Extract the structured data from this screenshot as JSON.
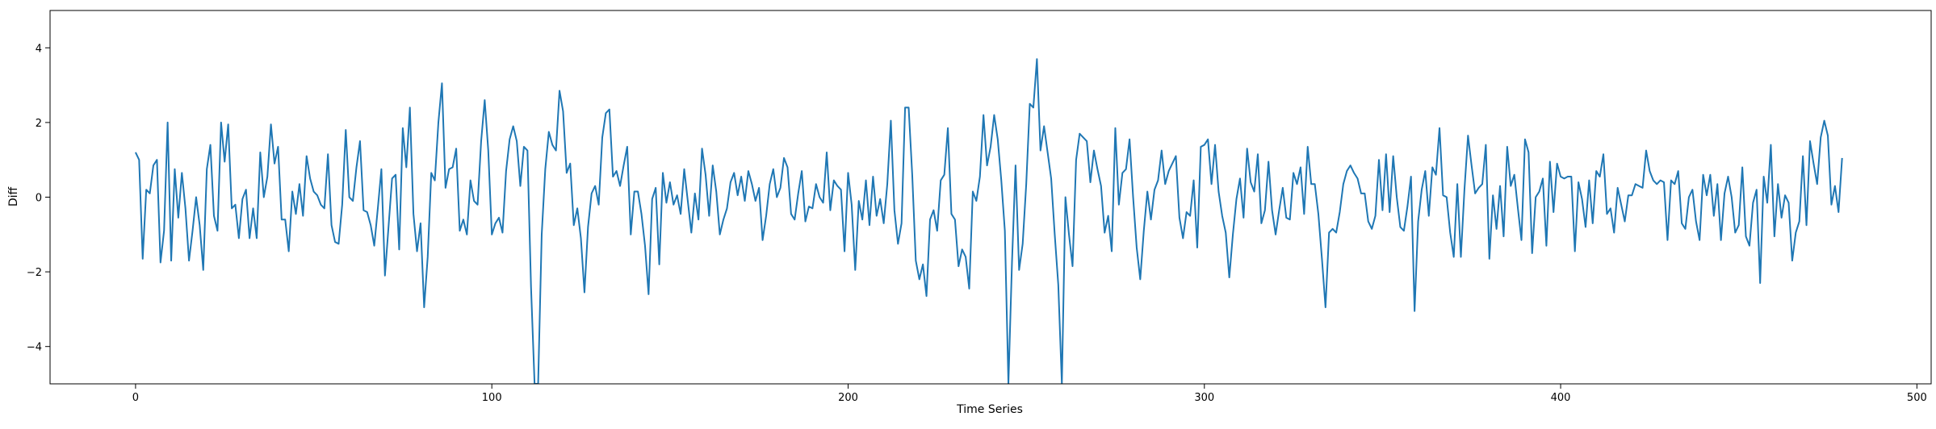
{
  "chart_data": {
    "type": "line",
    "title": "",
    "xlabel": "Time Series",
    "ylabel": "Diff",
    "xlim": [
      -24,
      504
    ],
    "ylim": [
      -5,
      5
    ],
    "xticks": [
      0,
      100,
      200,
      300,
      400,
      500
    ],
    "yticks": [
      -4,
      -2,
      0,
      2,
      4
    ],
    "grid": false,
    "legend": "none",
    "series": [
      {
        "color": "#1f77b4",
        "x_start": 0,
        "x_step": 1,
        "values": [
          1.2,
          1.0,
          -1.65,
          0.2,
          0.1,
          0.85,
          1.0,
          -1.75,
          -0.9,
          2.0,
          -1.7,
          0.75,
          -0.55,
          0.65,
          -0.3,
          -1.7,
          -0.9,
          0.0,
          -0.75,
          -1.95,
          0.75,
          1.4,
          -0.5,
          -0.9,
          2.0,
          0.95,
          1.95,
          -0.3,
          -0.2,
          -1.1,
          -0.05,
          0.2,
          -1.1,
          -0.3,
          -1.1,
          1.2,
          0.0,
          0.55,
          1.95,
          0.9,
          1.35,
          -0.6,
          -0.6,
          -1.45,
          0.15,
          -0.45,
          0.35,
          -0.5,
          1.1,
          0.5,
          0.15,
          0.05,
          -0.2,
          -0.3,
          1.15,
          -0.75,
          -1.2,
          -1.25,
          -0.2,
          1.8,
          0.0,
          -0.1,
          0.8,
          1.5,
          -0.35,
          -0.4,
          -0.75,
          -1.3,
          -0.3,
          0.75,
          -2.1,
          -0.8,
          0.5,
          0.6,
          -1.4,
          1.85,
          0.8,
          2.4,
          -0.45,
          -1.45,
          -0.7,
          -2.95,
          -1.6,
          0.65,
          0.45,
          2.0,
          3.05,
          0.25,
          0.75,
          0.8,
          1.3,
          -0.9,
          -0.6,
          -1.0,
          0.45,
          -0.1,
          -0.2,
          1.5,
          2.6,
          1.25,
          -1.0,
          -0.7,
          -0.55,
          -0.95,
          0.7,
          1.55,
          1.9,
          1.5,
          0.3,
          1.35,
          1.25,
          -2.4,
          -5.0,
          -5.0,
          -1.0,
          0.75,
          1.75,
          1.4,
          1.25,
          2.85,
          2.3,
          0.65,
          0.9,
          -0.75,
          -0.3,
          -1.1,
          -2.55,
          -0.8,
          0.1,
          0.3,
          -0.2,
          1.6,
          2.25,
          2.35,
          0.55,
          0.7,
          0.3,
          0.85,
          1.35,
          -1.0,
          0.15,
          0.15,
          -0.45,
          -1.3,
          -2.6,
          -0.05,
          0.25,
          -1.8,
          0.65,
          -0.15,
          0.4,
          -0.2,
          0.05,
          -0.45,
          0.75,
          -0.1,
          -0.95,
          0.1,
          -0.6,
          1.3,
          0.6,
          -0.5,
          0.85,
          0.15,
          -1.0,
          -0.6,
          -0.3,
          0.4,
          0.65,
          0.05,
          0.55,
          -0.1,
          0.7,
          0.35,
          -0.1,
          0.25,
          -1.15,
          -0.5,
          0.35,
          0.75,
          0.0,
          0.25,
          1.05,
          0.8,
          -0.45,
          -0.6,
          0.1,
          0.7,
          -0.65,
          -0.25,
          -0.3,
          0.35,
          0.0,
          -0.15,
          1.2,
          -0.35,
          0.45,
          0.3,
          0.2,
          -1.45,
          0.65,
          -0.2,
          -1.95,
          -0.1,
          -0.6,
          0.45,
          -0.75,
          0.55,
          -0.5,
          -0.05,
          -0.7,
          0.35,
          2.05,
          -0.35,
          -1.25,
          -0.7,
          2.4,
          2.4,
          0.6,
          -1.7,
          -2.2,
          -1.8,
          -2.65,
          -0.6,
          -0.35,
          -0.9,
          0.45,
          0.6,
          1.85,
          -0.45,
          -0.6,
          -1.85,
          -1.4,
          -1.6,
          -2.45,
          0.15,
          -0.1,
          0.55,
          2.2,
          0.85,
          1.35,
          2.2,
          1.55,
          0.45,
          -0.9,
          -5.0,
          -1.75,
          0.85,
          -1.95,
          -1.25,
          0.35,
          2.5,
          2.4,
          3.7,
          1.25,
          1.9,
          1.2,
          0.5,
          -1.0,
          -2.35,
          -5.0,
          0.0,
          -1.0,
          -1.85,
          1.0,
          1.7,
          1.6,
          1.5,
          0.4,
          1.25,
          0.75,
          0.3,
          -0.95,
          -0.5,
          -1.45,
          1.85,
          -0.2,
          0.65,
          0.75,
          1.55,
          0.0,
          -1.35,
          -2.2,
          -0.9,
          0.15,
          -0.6,
          0.2,
          0.45,
          1.25,
          0.35,
          0.7,
          0.9,
          1.1,
          -0.55,
          -1.1,
          -0.4,
          -0.5,
          0.45,
          -1.35,
          1.35,
          1.4,
          1.55,
          0.35,
          1.4,
          0.15,
          -0.5,
          -0.95,
          -2.15,
          -1.0,
          -0.05,
          0.5,
          -0.55,
          1.3,
          0.4,
          0.15,
          1.15,
          -0.7,
          -0.35,
          0.95,
          -0.35,
          -1.0,
          -0.35,
          0.25,
          -0.55,
          -0.6,
          0.65,
          0.35,
          0.8,
          -0.45,
          1.35,
          0.35,
          0.35,
          -0.45,
          -1.65,
          -2.95,
          -0.95,
          -0.85,
          -0.95,
          -0.4,
          0.35,
          0.7,
          0.85,
          0.65,
          0.5,
          0.1,
          0.1,
          -0.65,
          -0.85,
          -0.5,
          1.0,
          -0.35,
          1.15,
          -0.4,
          1.1,
          0.0,
          -0.8,
          -0.9,
          -0.25,
          0.55,
          -3.05,
          -0.65,
          0.2,
          0.7,
          -0.5,
          0.8,
          0.6,
          1.85,
          0.05,
          0.0,
          -0.95,
          -1.6,
          0.35,
          -1.6,
          0.2,
          1.65,
          0.85,
          0.1,
          0.25,
          0.35,
          1.4,
          -1.65,
          0.05,
          -0.85,
          0.3,
          -1.05,
          1.35,
          0.3,
          0.6,
          -0.3,
          -1.15,
          1.55,
          1.2,
          -1.5,
          0.0,
          0.15,
          0.5,
          -1.3,
          0.95,
          -0.4,
          0.9,
          0.55,
          0.5,
          0.55,
          0.55,
          -1.45,
          0.4,
          -0.05,
          -0.8,
          0.45,
          -0.7,
          0.7,
          0.55,
          1.15,
          -0.45,
          -0.3,
          -0.95,
          0.25,
          -0.2,
          -0.65,
          0.05,
          0.05,
          0.35,
          0.3,
          0.25,
          1.25,
          0.7,
          0.45,
          0.35,
          0.45,
          0.4,
          -1.15,
          0.45,
          0.35,
          0.7,
          -0.7,
          -0.85,
          0.0,
          0.2,
          -0.65,
          -1.15,
          0.6,
          0.05,
          0.6,
          -0.5,
          0.35,
          -1.15,
          0.1,
          0.55,
          0.0,
          -0.95,
          -0.75,
          0.8,
          -1.05,
          -1.3,
          -0.15,
          0.2,
          -2.3,
          0.55,
          -0.15,
          1.4,
          -1.05,
          0.35,
          -0.55,
          0.05,
          -0.15,
          -1.7,
          -0.95,
          -0.65,
          1.1,
          -0.75,
          1.5,
          0.9,
          0.35,
          1.6,
          2.05,
          1.65,
          -0.2,
          0.3,
          -0.4,
          1.05
        ]
      }
    ]
  }
}
